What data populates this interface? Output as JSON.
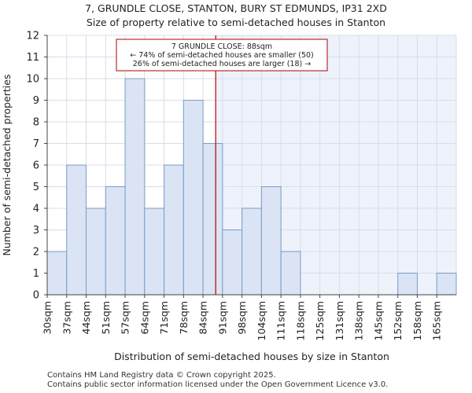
{
  "title": {
    "line1": "7, GRUNDLE CLOSE, STANTON, BURY ST EDMUNDS, IP31 2XD",
    "line2": "Size of property relative to semi-detached houses in Stanton"
  },
  "footer": {
    "line1": "Contains HM Land Registry data © Crown copyright 2025.",
    "line2": "Contains public sector information licensed under the Open Government Licence v3.0."
  },
  "chart_data": {
    "type": "bar",
    "title": "Size of property relative to semi-detached houses in Stanton",
    "xlabel": "Distribution of semi-detached houses by size in Stanton",
    "ylabel": "Number of semi-detached properties",
    "ylim": [
      0,
      12
    ],
    "yticks": [
      0,
      1,
      2,
      3,
      4,
      5,
      6,
      7,
      8,
      9,
      10,
      11,
      12
    ],
    "grid": true,
    "categories": [
      "30sqm",
      "37sqm",
      "44sqm",
      "51sqm",
      "57sqm",
      "64sqm",
      "71sqm",
      "78sqm",
      "84sqm",
      "91sqm",
      "98sqm",
      "104sqm",
      "111sqm",
      "118sqm",
      "125sqm",
      "131sqm",
      "138sqm",
      "145sqm",
      "152sqm",
      "158sqm",
      "165sqm"
    ],
    "values": [
      2,
      6,
      4,
      5,
      10,
      4,
      6,
      9,
      7,
      3,
      4,
      5,
      2,
      0,
      0,
      0,
      0,
      0,
      1,
      0,
      1
    ],
    "marker": {
      "value_sqm": 88,
      "position_bins": 8.65,
      "label_title": "7 GRUNDLE CLOSE: 88sqm",
      "label_smaller": "← 74% of semi-detached houses are smaller (50)",
      "label_larger": "26% of semi-detached houses are larger (18) →"
    },
    "colors": {
      "bar_fill": "#dae4f4",
      "bar_stroke": "#7b9bc8",
      "marker_line": "#b30000",
      "highlight_bg": "#eef2fb",
      "grid": "#d8dde8",
      "annotation_border": "#b30000"
    }
  }
}
